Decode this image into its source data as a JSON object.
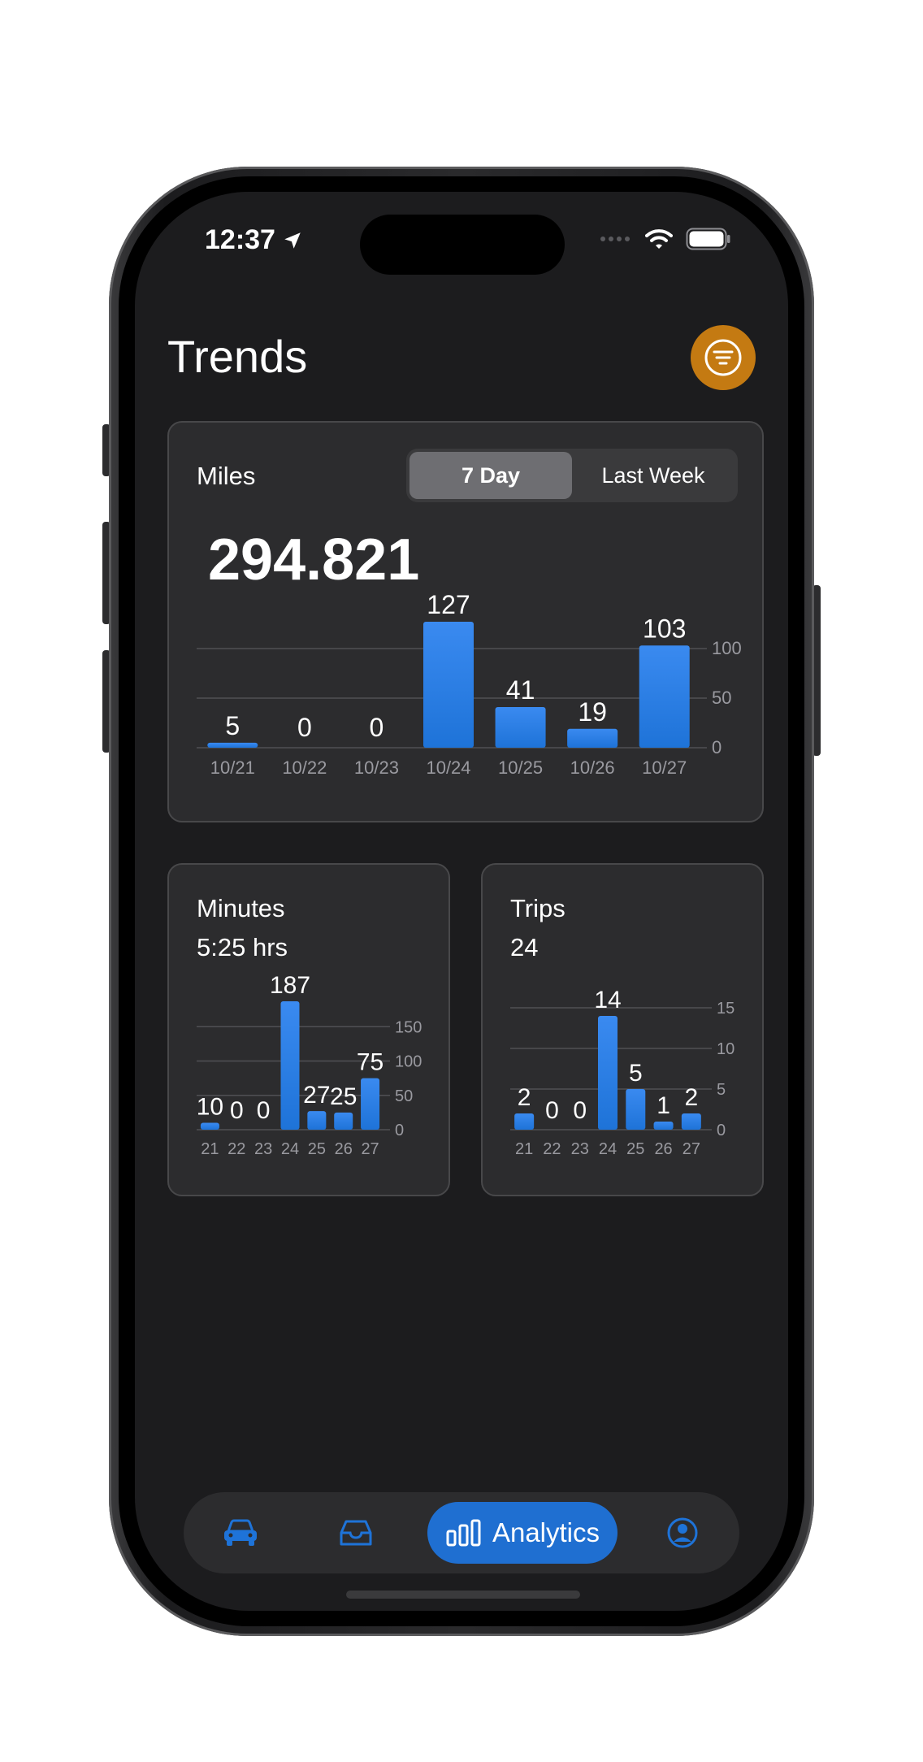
{
  "status": {
    "time": "12:37"
  },
  "page": {
    "title": "Trends"
  },
  "miles": {
    "label": "Miles",
    "segments": [
      "7 Day",
      "Last Week"
    ],
    "selected_segment": "7 Day",
    "total": "294.821"
  },
  "minutes": {
    "label": "Minutes",
    "total": "5:25 hrs"
  },
  "trips": {
    "label": "Trips",
    "total": "24"
  },
  "chart_data": [
    {
      "type": "bar",
      "categories": [
        "10/21",
        "10/22",
        "10/23",
        "10/24",
        "10/25",
        "10/26",
        "10/27"
      ],
      "values": [
        5,
        0,
        0,
        127,
        41,
        19,
        103
      ],
      "yticks": [
        0,
        50,
        100
      ],
      "ylim": [
        0,
        127
      ],
      "grid": true
    },
    {
      "type": "bar",
      "categories": [
        "21",
        "22",
        "23",
        "24",
        "25",
        "26",
        "27"
      ],
      "values": [
        10,
        0,
        0,
        187,
        27,
        25,
        75
      ],
      "yticks": [
        0,
        50,
        100,
        150
      ],
      "ylim": [
        0,
        187
      ],
      "grid": true
    },
    {
      "type": "bar",
      "categories": [
        "21",
        "22",
        "23",
        "24",
        "25",
        "26",
        "27"
      ],
      "values": [
        2,
        0,
        0,
        14,
        5,
        1,
        2
      ],
      "yticks": [
        0,
        5,
        10,
        15
      ],
      "ylim": [
        0,
        15
      ],
      "grid": true
    }
  ],
  "tabbar": {
    "items": [
      {
        "icon": "car-icon"
      },
      {
        "icon": "inbox-tray-icon"
      },
      {
        "icon": "bar-chart-icon",
        "label": "Analytics",
        "active": true
      },
      {
        "icon": "person-circle-icon"
      }
    ]
  },
  "colors": {
    "accent": "#1f6fd1",
    "bar": "#1e73d8",
    "filter": "#c47a12",
    "card": "#2c2c2e"
  }
}
